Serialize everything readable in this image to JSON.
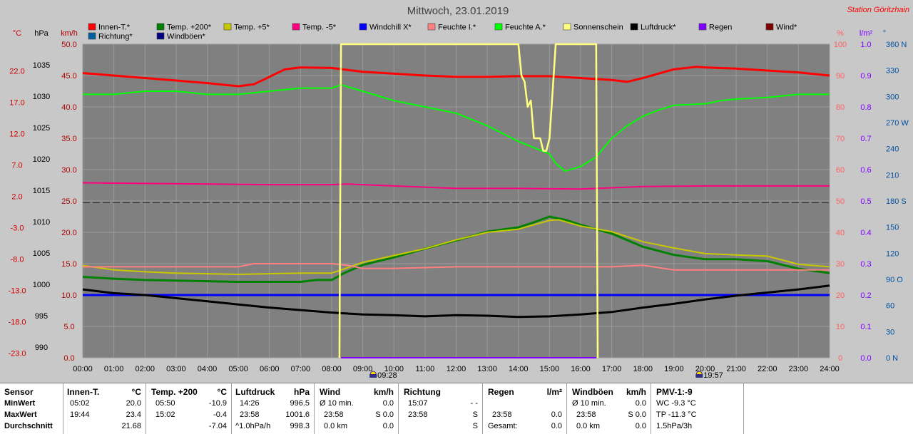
{
  "title": "Mittwoch, 23.01.2019",
  "station": "Station Göritzhain",
  "legend": [
    {
      "label": "Innen-T.*",
      "color": "#ff0000"
    },
    {
      "label": "Temp. +200*",
      "color": "#008000"
    },
    {
      "label": "Temp. +5*",
      "color": "#c8c800"
    },
    {
      "label": "Temp. -5*",
      "color": "#ff0080"
    },
    {
      "label": "Windchill X*",
      "color": "#0000ff"
    },
    {
      "label": "Feuchte I.*",
      "color": "#ff8080"
    },
    {
      "label": "Feuchte A.*",
      "color": "#00ff00"
    },
    {
      "label": "Sonnenschein",
      "color": "#ffff80"
    },
    {
      "label": "Luftdruck*",
      "color": "#000000"
    },
    {
      "label": "Regen",
      "color": "#8000ff"
    },
    {
      "label": "Wind*",
      "color": "#800000"
    },
    {
      "label": "Richtung*",
      "color": "#0060a0"
    },
    {
      "label": "Windböen*",
      "color": "#000080"
    }
  ],
  "axis_units": {
    "temp": "°C",
    "pressure": "hPa",
    "wind": "km/h",
    "humidity": "%",
    "rain": "l/m²",
    "direction": "°"
  },
  "chart_data": {
    "type": "line",
    "title": "Mittwoch, 23.01.2019",
    "x_ticks": [
      "00:00",
      "01:00",
      "02:00",
      "03:00",
      "04:00",
      "05:00",
      "06:00",
      "07:00",
      "08:00",
      "09:00",
      "10:00",
      "11:00",
      "12:00",
      "13:00",
      "14:00",
      "15:00",
      "16:00",
      "17:00",
      "18:00",
      "19:00",
      "20:00",
      "21:00",
      "22:00",
      "23:00",
      "24:00"
    ],
    "xlim": [
      0,
      24
    ],
    "y_axes": {
      "temp": {
        "unit": "°C",
        "ticks": [
          "22.0",
          "17.0",
          "12.0",
          "7.0",
          "2.0",
          "-3.0",
          "-8.0",
          "-13.0",
          "-18.0",
          "-23.0"
        ],
        "ylim": [
          -23,
          27
        ]
      },
      "pressure": {
        "unit": "hPa",
        "ticks": [
          "1035",
          "1030",
          "1025",
          "1020",
          "1015",
          "1010",
          "1005",
          "1000",
          "995",
          "990"
        ],
        "ylim": [
          990,
          1040
        ]
      },
      "wind": {
        "unit": "km/h",
        "ticks": [
          "50.0",
          "45.0",
          "40.0",
          "35.0",
          "30.0",
          "25.0",
          "20.0",
          "15.0",
          "10.0",
          "5.0",
          "0.0"
        ],
        "ylim": [
          0,
          50
        ]
      },
      "humidity": {
        "unit": "%",
        "ticks": [
          "100",
          "90",
          "80",
          "70",
          "60",
          "50",
          "40",
          "30",
          "20",
          "10",
          "0"
        ],
        "ylim": [
          0,
          100
        ]
      },
      "rain": {
        "unit": "l/m²",
        "ticks": [
          "1.0",
          "0.9",
          "0.8",
          "0.7",
          "0.6",
          "0.5",
          "0.4",
          "0.3",
          "0.2",
          "0.1",
          "0.0"
        ],
        "ylim": [
          0,
          1
        ]
      },
      "direction": {
        "unit": "°",
        "ticks": [
          "360 N",
          "330",
          "300",
          "270 W",
          "240",
          "210",
          "180 S",
          "150",
          "120",
          "90 O",
          "60",
          "30",
          "0 N"
        ],
        "ylim": [
          0,
          360
        ]
      }
    },
    "series": [
      {
        "name": "Innen-T.*",
        "axis": "temp",
        "color": "#ff0000",
        "width": 3,
        "points": [
          [
            0,
            22.4
          ],
          [
            1,
            22.0
          ],
          [
            2,
            21.6
          ],
          [
            3,
            21.2
          ],
          [
            4,
            20.8
          ],
          [
            5,
            20.3
          ],
          [
            5.5,
            20.6
          ],
          [
            6,
            21.8
          ],
          [
            6.5,
            23.0
          ],
          [
            7,
            23.3
          ],
          [
            8,
            23.2
          ],
          [
            9,
            22.6
          ],
          [
            10,
            22.3
          ],
          [
            11,
            22.0
          ],
          [
            12,
            21.8
          ],
          [
            13,
            21.8
          ],
          [
            14,
            21.9
          ],
          [
            15,
            21.9
          ],
          [
            16,
            21.6
          ],
          [
            17,
            21.3
          ],
          [
            17.5,
            21.0
          ],
          [
            18,
            21.6
          ],
          [
            19,
            23.0
          ],
          [
            19.73,
            23.4
          ],
          [
            20,
            23.3
          ],
          [
            21,
            23.1
          ],
          [
            22,
            22.8
          ],
          [
            23,
            22.5
          ],
          [
            24,
            22.0
          ]
        ]
      },
      {
        "name": "Feuchte A.*",
        "axis": "humidity",
        "color": "#00ff00",
        "width": 2,
        "points": [
          [
            0,
            84
          ],
          [
            1,
            84
          ],
          [
            2,
            85
          ],
          [
            3,
            85
          ],
          [
            4,
            84
          ],
          [
            5,
            84
          ],
          [
            6,
            85
          ],
          [
            7,
            86
          ],
          [
            8,
            86
          ],
          [
            8.3,
            87
          ],
          [
            9,
            85
          ],
          [
            10,
            82
          ],
          [
            11,
            80
          ],
          [
            12,
            78
          ],
          [
            13,
            74
          ],
          [
            14,
            69
          ],
          [
            14.5,
            67
          ],
          [
            15,
            65
          ],
          [
            15.2,
            62
          ],
          [
            15.5,
            59.5
          ],
          [
            16,
            61
          ],
          [
            16.5,
            64
          ],
          [
            17,
            70
          ],
          [
            17.5,
            74
          ],
          [
            18,
            77
          ],
          [
            18.5,
            79
          ],
          [
            19,
            80.5
          ],
          [
            20,
            81
          ],
          [
            20.5,
            82
          ],
          [
            21,
            82.5
          ],
          [
            22,
            83
          ],
          [
            23,
            84
          ],
          [
            24,
            84
          ]
        ]
      },
      {
        "name": "Temp. -5*",
        "axis": "temp",
        "color": "#ff0080",
        "width": 2,
        "points": [
          [
            0,
            4.9
          ],
          [
            2,
            4.8
          ],
          [
            4,
            4.7
          ],
          [
            6,
            4.6
          ],
          [
            8,
            4.6
          ],
          [
            8.5,
            4.7
          ],
          [
            9,
            4.6
          ],
          [
            10,
            4.4
          ],
          [
            11,
            4.2
          ],
          [
            12,
            4.0
          ],
          [
            14,
            4.0
          ],
          [
            16,
            3.9
          ],
          [
            17,
            4.1
          ],
          [
            18,
            4.3
          ],
          [
            20,
            4.4
          ],
          [
            22,
            4.4
          ],
          [
            24,
            4.4
          ]
        ]
      },
      {
        "name": "Temp. +200*",
        "axis": "temp",
        "color": "#008000",
        "width": 3,
        "points": [
          [
            0,
            -10.1
          ],
          [
            1,
            -10.4
          ],
          [
            2,
            -10.6
          ],
          [
            3,
            -10.7
          ],
          [
            4,
            -10.8
          ],
          [
            5,
            -10.9
          ],
          [
            6,
            -10.9
          ],
          [
            7,
            -10.9
          ],
          [
            7.5,
            -10.6
          ],
          [
            8,
            -10.6
          ],
          [
            8.4,
            -9.5
          ],
          [
            9,
            -8.2
          ],
          [
            10,
            -7.0
          ],
          [
            11,
            -5.6
          ],
          [
            12,
            -4.3
          ],
          [
            13,
            -2.9
          ],
          [
            14,
            -2.2
          ],
          [
            14.5,
            -1.4
          ],
          [
            15,
            -0.5
          ],
          [
            15.5,
            -1.0
          ],
          [
            16,
            -1.8
          ],
          [
            17,
            -3.2
          ],
          [
            18,
            -5.3
          ],
          [
            19,
            -6.6
          ],
          [
            20,
            -7.3
          ],
          [
            21,
            -7.3
          ],
          [
            22,
            -7.6
          ],
          [
            23,
            -8.8
          ],
          [
            24,
            -9.5
          ]
        ]
      },
      {
        "name": "Temp. +5*",
        "axis": "temp",
        "color": "#c8c800",
        "width": 2,
        "points": [
          [
            0,
            -8.3
          ],
          [
            1,
            -9.0
          ],
          [
            2,
            -9.3
          ],
          [
            3,
            -9.5
          ],
          [
            4,
            -9.6
          ],
          [
            5,
            -9.7
          ],
          [
            6,
            -9.6
          ],
          [
            7,
            -9.5
          ],
          [
            8,
            -9.5
          ],
          [
            8.3,
            -9.0
          ],
          [
            9,
            -7.8
          ],
          [
            10,
            -6.7
          ],
          [
            11,
            -5.6
          ],
          [
            12,
            -4.2
          ],
          [
            13,
            -3.0
          ],
          [
            14,
            -2.5
          ],
          [
            15,
            -1.1
          ],
          [
            15.3,
            -1.0
          ],
          [
            16,
            -2.0
          ],
          [
            17,
            -2.9
          ],
          [
            18,
            -4.5
          ],
          [
            19,
            -5.5
          ],
          [
            20,
            -6.4
          ],
          [
            21,
            -6.6
          ],
          [
            22,
            -6.8
          ],
          [
            23,
            -8.1
          ],
          [
            24,
            -8.5
          ]
        ]
      },
      {
        "name": "Feuchte I.*",
        "axis": "humidity",
        "color": "#ff8080",
        "width": 2,
        "points": [
          [
            0,
            29
          ],
          [
            3,
            29
          ],
          [
            4,
            29
          ],
          [
            5,
            29
          ],
          [
            5.5,
            30
          ],
          [
            8,
            30
          ],
          [
            8.5,
            29.5
          ],
          [
            9,
            28.5
          ],
          [
            10,
            28.5
          ],
          [
            12,
            29
          ],
          [
            14,
            29
          ],
          [
            16,
            29
          ],
          [
            17,
            29
          ],
          [
            18,
            29.5
          ],
          [
            19,
            28
          ],
          [
            20,
            28
          ],
          [
            22,
            28
          ],
          [
            24,
            28
          ]
        ]
      },
      {
        "name": "Windchill X*",
        "axis": "temp",
        "color": "#0000ff",
        "width": 3,
        "points": [
          [
            0,
            -13.0
          ],
          [
            12,
            -13.0
          ],
          [
            24,
            -13.0
          ]
        ]
      },
      {
        "name": "Luftdruck*",
        "axis": "pressure",
        "color": "#000000",
        "width": 3,
        "points": [
          [
            0,
            1000.9
          ],
          [
            1,
            1000.3
          ],
          [
            2,
            1000.0
          ],
          [
            3,
            999.5
          ],
          [
            4,
            999.0
          ],
          [
            5,
            998.5
          ],
          [
            6,
            998.0
          ],
          [
            7,
            997.6
          ],
          [
            8,
            997.2
          ],
          [
            9,
            996.9
          ],
          [
            10,
            996.8
          ],
          [
            11,
            996.6
          ],
          [
            12,
            996.8
          ],
          [
            13,
            996.7
          ],
          [
            14,
            996.5
          ],
          [
            15,
            996.6
          ],
          [
            16,
            996.9
          ],
          [
            17,
            997.3
          ],
          [
            18,
            998.0
          ],
          [
            19,
            998.6
          ],
          [
            20,
            999.3
          ],
          [
            21,
            999.9
          ],
          [
            22,
            1000.4
          ],
          [
            23,
            1000.9
          ],
          [
            24,
            1001.5
          ]
        ]
      },
      {
        "name": "Regen",
        "axis": "rain",
        "color": "#8000ff",
        "width": 2,
        "points": [
          [
            8.3,
            0
          ],
          [
            16.5,
            0
          ]
        ]
      },
      {
        "name": "Sonnenschein",
        "axis": "wind",
        "color": "#ffff80",
        "width": 2.5,
        "points": [
          [
            8.25,
            0
          ],
          [
            8.3,
            50
          ],
          [
            14,
            50
          ],
          [
            14.1,
            45
          ],
          [
            14.2,
            44
          ],
          [
            14.3,
            40
          ],
          [
            14.4,
            41
          ],
          [
            14.5,
            35
          ],
          [
            14.7,
            35
          ],
          [
            14.8,
            33
          ],
          [
            14.9,
            33
          ],
          [
            15.0,
            35
          ],
          [
            15.2,
            50
          ],
          [
            16.5,
            50
          ],
          [
            16.55,
            0
          ]
        ]
      }
    ],
    "reference_line": {
      "axis": "humidity",
      "value": 49.5,
      "style": "dashed"
    },
    "annotations": [
      {
        "label": "09:28",
        "x": 9.47,
        "icon": "sunrise-icon"
      },
      {
        "label": "19:57",
        "x": 19.95,
        "icon": "sunset-icon"
      }
    ],
    "grid": true
  },
  "stats": {
    "sensor": {
      "header": "Sensor",
      "rows": [
        "MinWert",
        "MaxWert",
        "Durchschnitt"
      ]
    },
    "innen": {
      "header": "Innen-T.",
      "unit": "°C",
      "rows": [
        [
          "05:02",
          "20.0"
        ],
        [
          "19:44",
          "23.4"
        ],
        [
          "",
          "21.68"
        ]
      ]
    },
    "temp200": {
      "header": "Temp. +200",
      "unit": "°C",
      "rows": [
        [
          "05:50",
          "-10.9"
        ],
        [
          "15:02",
          "-0.4"
        ],
        [
          "",
          "-7.04"
        ]
      ]
    },
    "luftdruck": {
      "header": "Luftdruck",
      "unit": "hPa",
      "rows": [
        [
          "14:26",
          "996.5"
        ],
        [
          "23:58",
          "1001.6"
        ],
        [
          "^1.0hPa/h",
          "998.3"
        ]
      ]
    },
    "wind": {
      "header": "Wind",
      "unit": "km/h",
      "rows": [
        [
          "Ø 10 min.",
          "0.0"
        ],
        [
          "23:58",
          "S 0.0"
        ],
        [
          "0.0 km",
          "0.0"
        ]
      ]
    },
    "richtung": {
      "header": "Richtung",
      "rows": [
        [
          "15:07",
          "- -"
        ],
        [
          "23:58",
          "S"
        ],
        [
          "",
          "S"
        ]
      ]
    },
    "regen": {
      "header": "Regen",
      "unit": "l/m²",
      "rows": [
        [
          "",
          ""
        ],
        [
          "23:58",
          "0.0"
        ],
        [
          "Gesamt:",
          "0.0"
        ]
      ]
    },
    "windboeen": {
      "header": "Windböen",
      "unit": "km/h",
      "rows": [
        [
          "Ø 10 min.",
          "0.0"
        ],
        [
          "23:58",
          "S 0.0"
        ],
        [
          "0.0 km",
          "0.0"
        ]
      ]
    },
    "pmv": {
      "header": "PMV-1:-9",
      "rows": [
        "WC -9.3 °C",
        "TP -11.3 °C",
        "1.5hPa/3h"
      ]
    }
  }
}
